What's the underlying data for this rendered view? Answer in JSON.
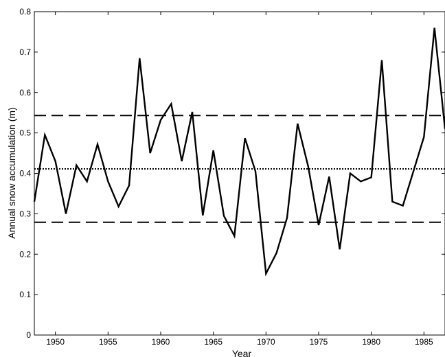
{
  "chart_data": {
    "type": "line",
    "xlabel": "Year",
    "ylabel": "Annual snow accumulation (m)",
    "xlim": [
      1948,
      1987
    ],
    "ylim": [
      0,
      0.8
    ],
    "xticks": [
      1950,
      1955,
      1960,
      1965,
      1970,
      1975,
      1980,
      1985
    ],
    "xtick_labels": [
      "1950",
      "1955",
      "1960",
      "1965",
      "1970",
      "1975",
      "1980",
      "1985"
    ],
    "yticks": [
      0,
      0.1,
      0.2,
      0.3,
      0.4,
      0.5,
      0.6,
      0.7,
      0.8
    ],
    "ytick_labels": [
      "0",
      "0.1",
      "0.2",
      "0.3",
      "0.4",
      "0.5",
      "0.6",
      "0.7",
      "0.8"
    ],
    "grid": false,
    "series": [
      {
        "x": [
          1948,
          1949,
          1950,
          1951,
          1952,
          1953,
          1954,
          1955,
          1956,
          1957,
          1958,
          1959,
          1960,
          1961,
          1962,
          1963,
          1964,
          1965,
          1966,
          1967,
          1968,
          1969,
          1970,
          1971,
          1972,
          1973,
          1974,
          1975,
          1976,
          1977,
          1978,
          1979,
          1980,
          1981,
          1982,
          1983,
          1984,
          1985,
          1986,
          1987
        ],
        "values": [
          0.33,
          0.495,
          0.43,
          0.3,
          0.42,
          0.38,
          0.472,
          0.38,
          0.318,
          0.37,
          0.685,
          0.45,
          0.532,
          0.572,
          0.43,
          0.552,
          0.296,
          0.457,
          0.295,
          0.245,
          0.487,
          0.405,
          0.152,
          0.203,
          0.29,
          0.523,
          0.418,
          0.272,
          0.392,
          0.212,
          0.4,
          0.38,
          0.39,
          0.68,
          0.33,
          0.32,
          0.405,
          0.49,
          0.76,
          0.51
        ],
        "color": "#000000",
        "style": "solid"
      }
    ],
    "reference_lines": [
      {
        "y": 0.543,
        "style": "dashed"
      },
      {
        "y": 0.411,
        "style": "dotted"
      },
      {
        "y": 0.279,
        "style": "dashed"
      }
    ]
  }
}
